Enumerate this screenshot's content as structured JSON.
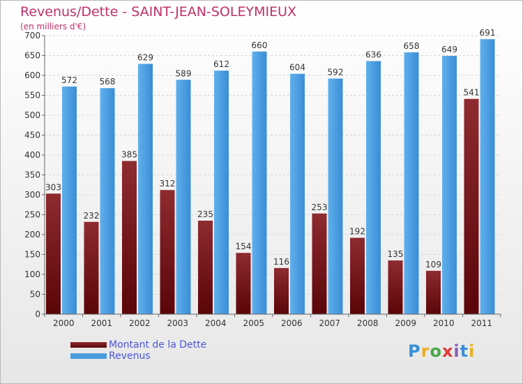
{
  "title": "Revenus/Dette - SAINT-JEAN-SOLEYMIEUX",
  "subtitle": "(en milliers d'€)",
  "logo": {
    "letters": [
      "P",
      "r",
      "o",
      "x",
      "i",
      "t",
      "i"
    ],
    "colors": [
      "#3a8fd8",
      "#e8b020",
      "#48a848",
      "#e23838",
      "#8a5ab8",
      "#3a8fd8",
      "#e8b020"
    ]
  },
  "colors": {
    "dette": "#7a1a1e",
    "revenus": "#4a9ee0",
    "title": "#c0306a",
    "legend_text": "#4a55d8"
  },
  "chart_data": {
    "type": "bar",
    "categories": [
      "2000",
      "2001",
      "2002",
      "2003",
      "2004",
      "2005",
      "2006",
      "2007",
      "2008",
      "2009",
      "2010",
      "2011"
    ],
    "series": [
      {
        "name": "Montant de la Dette",
        "values": [
          303,
          232,
          385,
          312,
          235,
          154,
          116,
          253,
          192,
          135,
          109,
          541
        ]
      },
      {
        "name": "Revenus",
        "values": [
          572,
          568,
          629,
          589,
          612,
          660,
          604,
          592,
          636,
          658,
          649,
          691
        ]
      }
    ],
    "title": "Revenus/Dette - SAINT-JEAN-SOLEYMIEUX",
    "ylabel": "(en milliers d'€)",
    "xlabel": "",
    "ylim": [
      0,
      700
    ],
    "yticks": [
      0,
      50,
      100,
      150,
      200,
      250,
      300,
      350,
      400,
      450,
      500,
      550,
      600,
      650,
      700
    ],
    "grid": true,
    "legend": "bottom-left"
  }
}
